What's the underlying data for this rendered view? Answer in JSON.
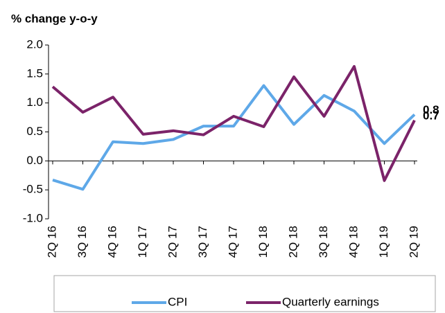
{
  "chart_data": {
    "type": "line",
    "y_label": "% change y-o-y",
    "categories": [
      "2Q 16",
      "3Q 16",
      "4Q 16",
      "1Q 17",
      "2Q 17",
      "3Q 17",
      "4Q 17",
      "1Q 18",
      "2Q 18",
      "3Q 18",
      "4Q 18",
      "1Q 19",
      "2Q 19"
    ],
    "series": [
      {
        "name": "CPI",
        "color": "#5ea8e8",
        "values": [
          -0.33,
          -0.49,
          0.33,
          0.3,
          0.37,
          0.6,
          0.6,
          1.3,
          0.63,
          1.13,
          0.86,
          0.3,
          0.8
        ],
        "value_labels": [
          null,
          null,
          null,
          null,
          null,
          null,
          null,
          null,
          null,
          null,
          null,
          null,
          "0.8"
        ]
      },
      {
        "name": "Quarterly earnings",
        "color": "#7b2369",
        "values": [
          1.28,
          0.84,
          1.1,
          0.46,
          0.52,
          0.45,
          0.77,
          0.59,
          1.45,
          0.77,
          1.63,
          -0.34,
          0.7
        ],
        "value_labels": [
          null,
          null,
          null,
          null,
          null,
          null,
          null,
          null,
          null,
          null,
          null,
          null,
          "0.7"
        ]
      }
    ],
    "ylim": [
      -1,
      2
    ],
    "yticks": [
      {
        "value": -1,
        "label": "-1.0"
      },
      -0.5,
      {
        "value": 0,
        "label": "0.0"
      },
      0.5,
      {
        "value": 1,
        "label": "1.0"
      },
      1.5,
      {
        "value": 2,
        "label": "2.0"
      }
    ],
    "legend": "bottom"
  }
}
